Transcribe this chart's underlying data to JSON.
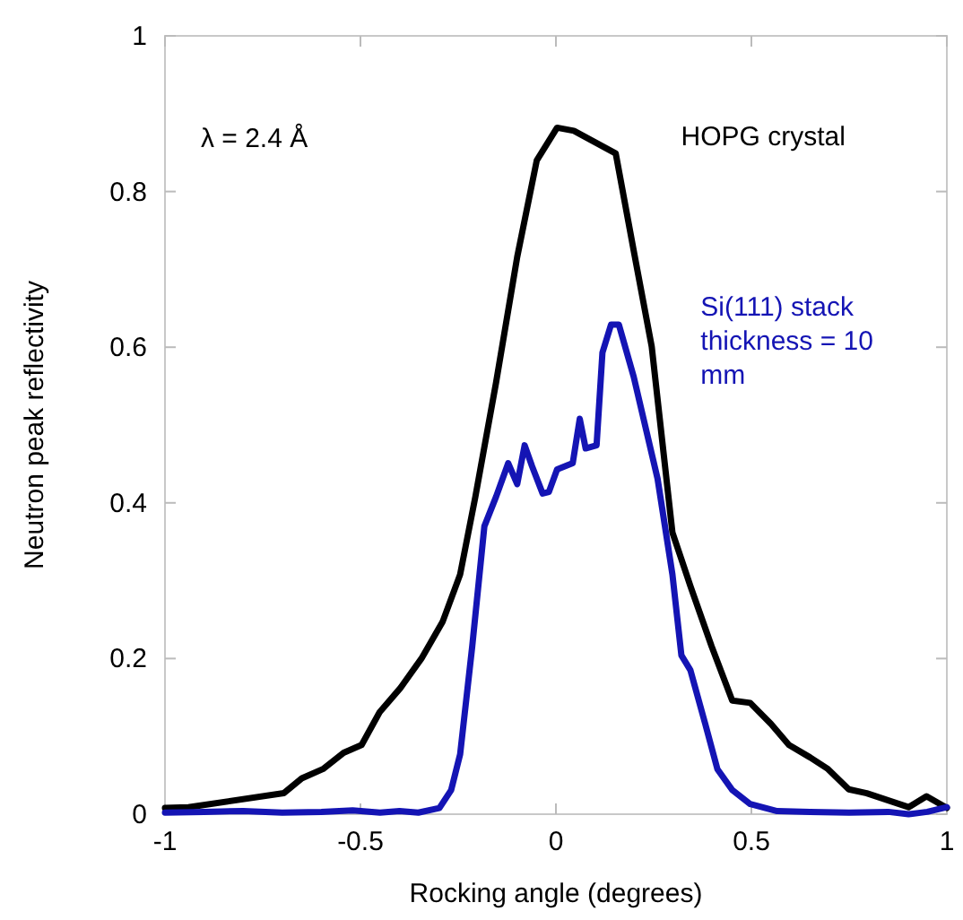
{
  "chart_data": {
    "type": "line",
    "xlabel": "Rocking angle (degrees)",
    "ylabel": "Neutron peak reflectivity",
    "xlim": [
      -1,
      1
    ],
    "ylim": [
      0,
      1
    ],
    "xticks": [
      -1,
      -0.5,
      0,
      0.5,
      1
    ],
    "yticks": [
      0,
      0.2,
      0.4,
      0.6,
      0.8,
      1
    ],
    "grid": false,
    "legend": false,
    "marker": "none",
    "line_style": "solid",
    "annotations": [
      "λ = 2.4 Å"
    ],
    "series": [
      {
        "name": "HOPG crystal",
        "color": "#000000",
        "x": [
          -1,
          -0.94,
          -0.696,
          -0.65,
          -0.596,
          -0.543,
          -0.497,
          -0.451,
          -0.398,
          -0.344,
          -0.29,
          -0.245,
          -0.206,
          -0.153,
          -0.099,
          -0.049,
          0.003,
          0.046,
          0.153,
          0.199,
          0.245,
          0.298,
          0.344,
          0.398,
          0.451,
          0.497,
          0.55,
          0.596,
          0.65,
          0.696,
          0.749,
          0.795,
          0.902,
          0.948,
          1
        ],
        "values": [
          0.008,
          0.009,
          0.027,
          0.046,
          0.058,
          0.079,
          0.089,
          0.131,
          0.162,
          0.2,
          0.247,
          0.308,
          0.408,
          0.555,
          0.716,
          0.84,
          0.882,
          0.878,
          0.849,
          0.724,
          0.601,
          0.362,
          0.293,
          0.216,
          0.146,
          0.143,
          0.116,
          0.089,
          0.073,
          0.058,
          0.032,
          0.027,
          0.009,
          0.023,
          0.008
        ]
      },
      {
        "name": "Si(111) stack thickness = 10 mm",
        "color": "#1414b4",
        "x": [
          -1,
          -0.9,
          -0.8,
          -0.7,
          -0.6,
          -0.52,
          -0.45,
          -0.4,
          -0.352,
          -0.298,
          -0.268,
          -0.245,
          -0.214,
          -0.183,
          -0.153,
          -0.122,
          -0.099,
          -0.08,
          -0.061,
          -0.034,
          -0.018,
          0.003,
          0.043,
          0.061,
          0.076,
          0.104,
          0.119,
          0.141,
          0.161,
          0.199,
          0.26,
          0.298,
          0.321,
          0.344,
          0.382,
          0.413,
          0.451,
          0.497,
          0.566,
          0.65,
          0.75,
          0.85,
          0.902,
          0.95,
          1
        ],
        "values": [
          0.002,
          0.003,
          0.004,
          0.002,
          0.003,
          0.005,
          0.002,
          0.004,
          0.002,
          0.008,
          0.031,
          0.077,
          0.216,
          0.37,
          0.408,
          0.451,
          0.424,
          0.474,
          0.447,
          0.412,
          0.414,
          0.443,
          0.451,
          0.508,
          0.47,
          0.474,
          0.593,
          0.629,
          0.629,
          0.562,
          0.431,
          0.308,
          0.204,
          0.185,
          0.116,
          0.058,
          0.031,
          0.013,
          0.004,
          0.003,
          0.002,
          0.003,
          0,
          0.003,
          0.009
        ]
      }
    ]
  }
}
